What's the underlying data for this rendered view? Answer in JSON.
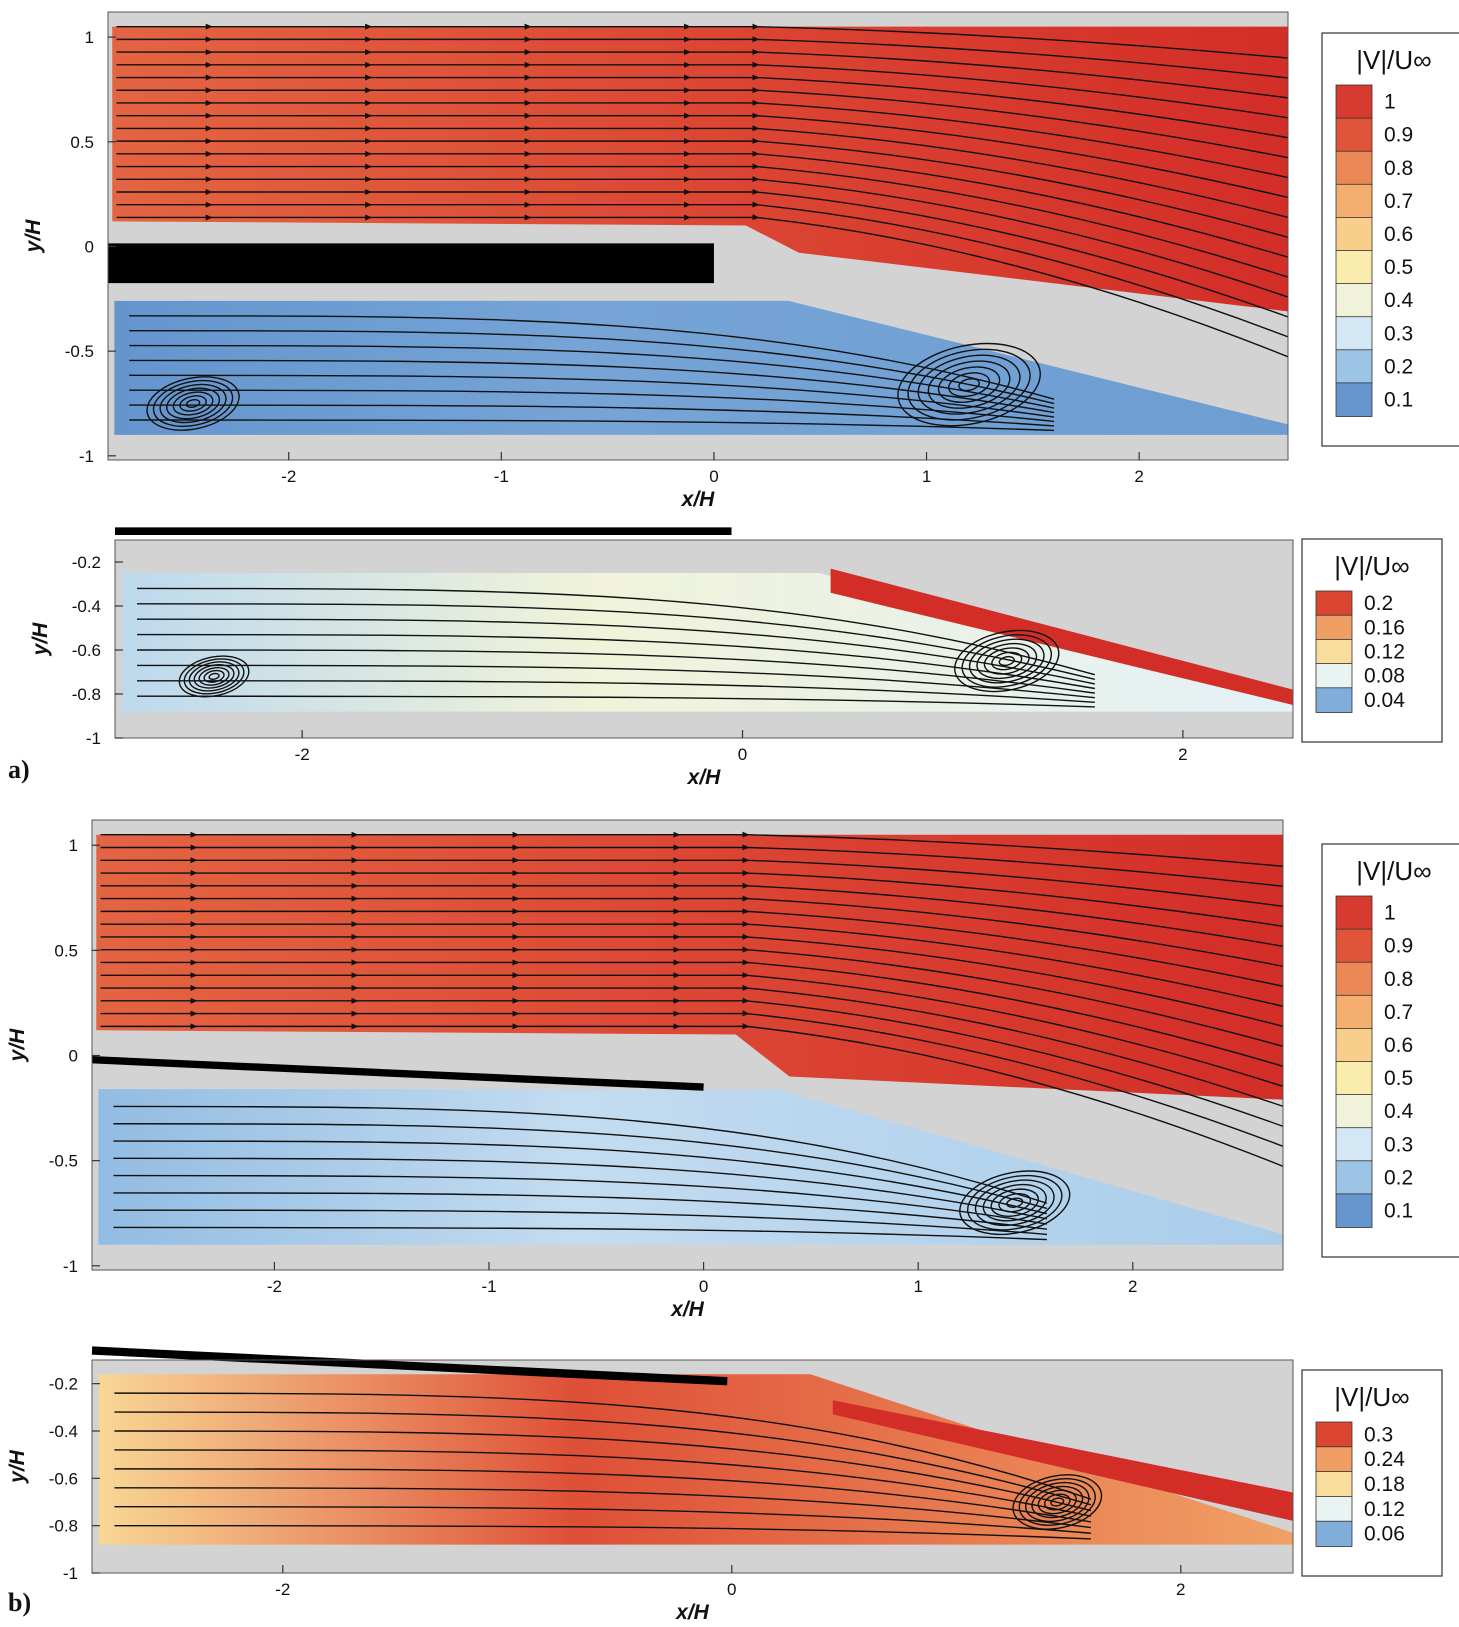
{
  "colors": {
    "background": "#d3d3d3",
    "wall": "#000000",
    "streamline": "#111111",
    "colormap": [
      "#4a7fc1",
      "#98c1e6",
      "#e7f3f8",
      "#fbf3b4",
      "#f7c783",
      "#ef9a60",
      "#df5138",
      "#d32d28"
    ]
  },
  "panel_labels": [
    {
      "text": "a)"
    },
    {
      "text": "b)"
    }
  ],
  "chart_data": [
    {
      "type": "heatmap",
      "name": "a-full",
      "xlabel": "x/H",
      "ylabel": "y/H",
      "xlim": [
        -2.85,
        2.7
      ],
      "ylim": [
        -1.02,
        1.12
      ],
      "xticks": [
        -2,
        -1,
        0,
        1,
        2
      ],
      "yticks": [
        -1,
        -0.5,
        0,
        0.5,
        1
      ],
      "vmax": 1.0,
      "colorbar": {
        "title": "|V|/U∞",
        "ticks": [
          0.1,
          0.2,
          0.3,
          0.4,
          0.5,
          0.6,
          0.7,
          0.8,
          0.9,
          1
        ]
      },
      "wall": {
        "x": [
          -2.85,
          0
        ],
        "y": [
          -0.08,
          -0.08
        ],
        "thickness": 0.19
      },
      "upper_flow": {
        "top": 1.05,
        "bottom": 0.12,
        "velocity_start": 0.82,
        "velocity_end": 1.0
      },
      "wake": {
        "top": -0.26,
        "bottom": -0.9,
        "velocity": 0.08
      },
      "vortices": [
        {
          "x": -2.45,
          "y": -0.75,
          "radius": 0.22
        },
        {
          "x": 1.2,
          "y": -0.66,
          "radius": 0.34
        }
      ]
    },
    {
      "type": "heatmap",
      "name": "a-zoom",
      "xlabel": "x/H",
      "ylabel": "y/H",
      "xlim": [
        -2.85,
        2.5
      ],
      "ylim": [
        -1.0,
        -0.1
      ],
      "xticks": [
        -2,
        0,
        2
      ],
      "yticks": [
        -1,
        -0.8,
        -0.6,
        -0.4,
        -0.2
      ],
      "vmax": 0.2,
      "colorbar": {
        "title": "|V|/U∞",
        "ticks": [
          0.04,
          0.08,
          0.12,
          0.16,
          0.2
        ]
      },
      "wall": {
        "x": [
          -2.85,
          -0.05
        ],
        "y": [
          -0.06,
          -0.06
        ],
        "thickness": 0.035
      },
      "wake": {
        "top": -0.25,
        "bottom": -0.88,
        "velocity": 0.07
      },
      "shear_layer": {
        "x": [
          0.4,
          2.5
        ],
        "y_top": [
          -0.23,
          -0.78
        ],
        "y_bottom": [
          -0.34,
          -0.85
        ]
      },
      "vortices": [
        {
          "x": -2.4,
          "y": -0.72,
          "radius": 0.16
        },
        {
          "x": 1.2,
          "y": -0.65,
          "radius": 0.24
        }
      ]
    },
    {
      "type": "heatmap",
      "name": "b-full",
      "xlabel": "x/H",
      "ylabel": "y/H",
      "xlim": [
        -2.85,
        2.7
      ],
      "ylim": [
        -1.02,
        1.12
      ],
      "xticks": [
        -2,
        -1,
        0,
        1,
        2
      ],
      "yticks": [
        -1,
        -0.5,
        0,
        0.5,
        1
      ],
      "vmax": 1.0,
      "colorbar": {
        "title": "|V|/U∞",
        "ticks": [
          0.1,
          0.2,
          0.3,
          0.4,
          0.5,
          0.6,
          0.7,
          0.8,
          0.9,
          1
        ]
      },
      "wall": {
        "x": [
          -2.85,
          0
        ],
        "y": [
          -0.02,
          -0.15
        ],
        "thickness": 0.035
      },
      "upper_flow": {
        "top": 1.05,
        "bottom": 0.12,
        "velocity_start": 0.82,
        "velocity_end": 1.0
      },
      "wake": {
        "top": -0.16,
        "bottom": -0.9,
        "velocity": 0.22
      },
      "vortices": [
        {
          "x": 1.45,
          "y": -0.7,
          "radius": 0.26
        }
      ]
    },
    {
      "type": "heatmap",
      "name": "b-zoom",
      "xlabel": "x/H",
      "ylabel": "y/H",
      "xlim": [
        -2.85,
        2.5
      ],
      "ylim": [
        -1.0,
        -0.1
      ],
      "xticks": [
        -2,
        0,
        2
      ],
      "yticks": [
        -1,
        -0.8,
        -0.6,
        -0.4,
        -0.2
      ],
      "vmax": 0.3,
      "colorbar": {
        "title": "|V|/U∞",
        "ticks": [
          0.06,
          0.12,
          0.18,
          0.24,
          0.3
        ]
      },
      "wall": {
        "x": [
          -2.85,
          -0.02
        ],
        "y": [
          -0.06,
          -0.19
        ],
        "thickness": 0.035
      },
      "wake": {
        "top": -0.16,
        "bottom": -0.88,
        "velocity": 0.26
      },
      "shear_layer": {
        "x": [
          0.45,
          2.5
        ],
        "y_top": [
          -0.27,
          -0.66
        ],
        "y_bottom": [
          -0.33,
          -0.78
        ]
      },
      "vortices": [
        {
          "x": 1.45,
          "y": -0.7,
          "radius": 0.2
        }
      ]
    }
  ]
}
